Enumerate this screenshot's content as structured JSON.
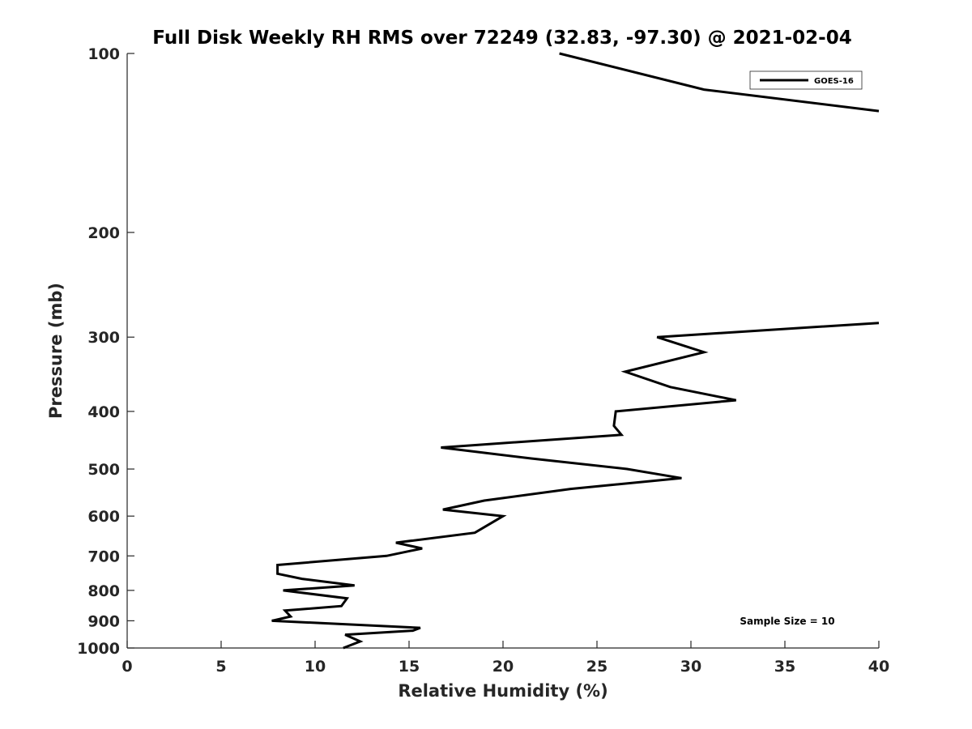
{
  "chart_data": {
    "type": "line",
    "title": "Full Disk Weekly RH RMS over 72249 (32.83, -97.30) @ 2021-02-04",
    "xlabel": "Relative Humidity (%)",
    "ylabel": "Pressure (mb)",
    "xlim": [
      0,
      40
    ],
    "ylim": [
      100,
      1000
    ],
    "y_scale": "log",
    "y_reversed": true,
    "grid": false,
    "x_ticks": [
      0,
      5,
      10,
      15,
      20,
      25,
      30,
      35,
      40
    ],
    "y_ticks": [
      100,
      200,
      300,
      400,
      500,
      600,
      700,
      800,
      900,
      1000
    ],
    "legend_position": "top-right",
    "series": [
      {
        "name": "GOES-16",
        "color": "#000000",
        "segments": [
          [
            [
              23.0,
              100
            ],
            [
              30.7,
              115
            ],
            [
              40.0,
              125
            ]
          ],
          [
            [
              40.0,
              284
            ],
            [
              28.2,
              300
            ],
            [
              30.7,
              318
            ],
            [
              26.5,
              343
            ],
            [
              28.9,
              364
            ],
            [
              32.4,
              383
            ],
            [
              26.0,
              400
            ],
            [
              25.9,
              423
            ],
            [
              26.3,
              438
            ],
            [
              16.7,
              460
            ],
            [
              21.5,
              480
            ],
            [
              26.6,
              500
            ],
            [
              29.5,
              518
            ],
            [
              23.6,
              540
            ],
            [
              19.0,
              565
            ],
            [
              16.8,
              585
            ],
            [
              20.0,
              600
            ],
            [
              18.5,
              640
            ],
            [
              14.3,
              665
            ],
            [
              15.7,
              680
            ],
            [
              13.8,
              700
            ],
            [
              8.0,
              725
            ],
            [
              8.0,
              750
            ],
            [
              9.3,
              765
            ],
            [
              12.1,
              785
            ],
            [
              8.3,
              800
            ],
            [
              11.7,
              825
            ],
            [
              11.4,
              850
            ],
            [
              8.4,
              865
            ],
            [
              8.7,
              885
            ],
            [
              7.7,
              900
            ],
            [
              15.6,
              925
            ],
            [
              15.2,
              935
            ],
            [
              11.6,
              950
            ],
            [
              12.4,
              975
            ],
            [
              11.5,
              1000
            ]
          ]
        ]
      }
    ],
    "annotations": [
      {
        "text": "Sample Size = 10",
        "position": "bottom-right"
      }
    ]
  }
}
